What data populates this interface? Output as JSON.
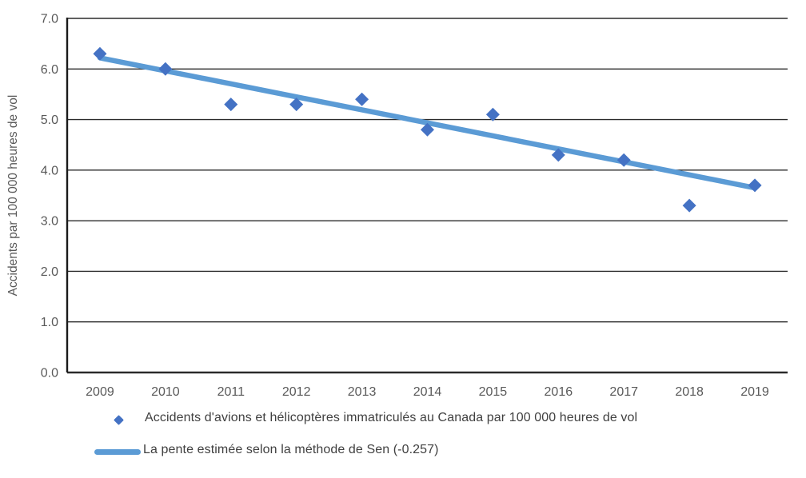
{
  "chart_data": {
    "type": "scatter",
    "title": "",
    "xlabel": "",
    "ylabel": "Accidents par 100 000 heures de vol",
    "categories": [
      "2009",
      "2010",
      "2011",
      "2012",
      "2013",
      "2014",
      "2015",
      "2016",
      "2017",
      "2018",
      "2019"
    ],
    "series": [
      {
        "name": "Accidents d'avions et hélicoptères immatriculés au Canada par 100 000 heures de vol",
        "type": "scatter",
        "marker": "diamond",
        "color": "#4472C4",
        "values": [
          6.3,
          6.0,
          5.3,
          5.3,
          5.4,
          4.8,
          5.1,
          4.3,
          4.2,
          3.3,
          3.7
        ]
      },
      {
        "name": "La pente estimée selon la méthode de Sen (-0.257)",
        "type": "line",
        "color": "#5B9BD5",
        "slope": -0.257,
        "trend_start": 6.22,
        "trend_end": 3.65
      }
    ],
    "ylim": [
      0,
      7
    ],
    "ytick_labels": [
      "0.0",
      "1.0",
      "2.0",
      "3.0",
      "4.0",
      "5.0",
      "6.0",
      "7.0"
    ],
    "grid": true,
    "legend_position": "bottom",
    "colors": {
      "grid": "#2b2b2b",
      "axis_line": "#1a1a1a",
      "axis_text": "#595959",
      "legend_text": "#404040",
      "background": "#ffffff"
    }
  }
}
